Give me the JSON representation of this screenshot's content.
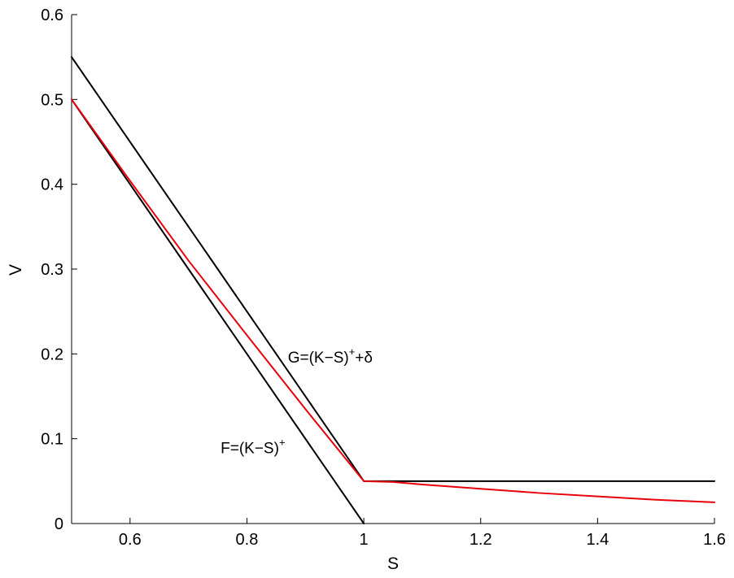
{
  "chart_data": {
    "type": "line",
    "title": "",
    "xlabel": "S",
    "ylabel": "V",
    "xlim": [
      0.5,
      1.6
    ],
    "ylim": [
      0,
      0.6
    ],
    "x_ticks": [
      0.6,
      0.8,
      1,
      1.2,
      1.4,
      1.6
    ],
    "x_tick_labels": [
      "0.6",
      "0.8",
      "1",
      "1.2",
      "1.4",
      "1.6"
    ],
    "y_ticks": [
      0,
      0.1,
      0.2,
      0.3,
      0.4,
      0.5,
      0.6
    ],
    "y_tick_labels": [
      "0",
      "0.1",
      "0.2",
      "0.3",
      "0.4",
      "0.5",
      "0.6"
    ],
    "grid": false,
    "series": [
      {
        "color": "#000000",
        "x": [
          0.5,
          1.0
        ],
        "y": [
          0.5,
          0.0
        ]
      },
      {
        "color": "#000000",
        "x": [
          0.5,
          1.0,
          1.6
        ],
        "y": [
          0.55,
          0.05,
          0.05
        ]
      },
      {
        "color": "#e8000b",
        "x": [
          0.5,
          0.6,
          0.7,
          0.8,
          0.9,
          1.0,
          1.05,
          1.1,
          1.2,
          1.3,
          1.4,
          1.5,
          1.6
        ],
        "y": [
          0.5,
          0.404,
          0.31,
          0.222,
          0.135,
          0.05,
          0.049,
          0.046,
          0.041,
          0.036,
          0.032,
          0.028,
          0.025
        ]
      }
    ],
    "annotations": [
      {
        "text": "G=(K−S)",
        "sup": "+",
        "suffix": "+δ",
        "x": 0.87,
        "y": 0.19
      },
      {
        "text": "F=(K−S)",
        "sup": "+",
        "suffix": "",
        "x": 0.755,
        "y": 0.083
      }
    ]
  }
}
